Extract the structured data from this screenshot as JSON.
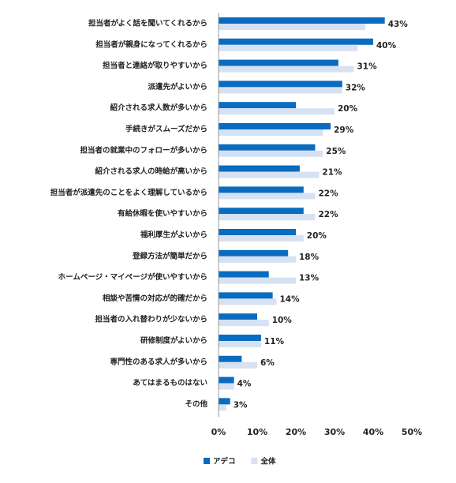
{
  "chart_data": {
    "type": "bar",
    "orientation": "horizontal",
    "categories": [
      "担当者がよく話を聞いてくれるから",
      "担当者が親身になってくれるから",
      "担当者と連絡が取りやすいから",
      "派遣先がよいから",
      "紹介される求人数が多いから",
      "手続きがスムーズだから",
      "担当者の就業中のフォローが多いから",
      "紹介される求人の時給が高いから",
      "担当者が派遣先のことをよく理解しているから",
      "有給休暇を使いやすいから",
      "福利厚生がよいから",
      "登録方法が簡単だから",
      "ホームページ・マイページが使いやすいから",
      "相談や苦情の対応が的確だから",
      "担当者の入れ替わりが少ないから",
      "研修制度がよいから",
      "専門性のある求人が多いから",
      "あてはまるものはない",
      "その他"
    ],
    "series": [
      {
        "name": "アデコ",
        "color": "#0a6cc0",
        "values": [
          43,
          40,
          31,
          32,
          20,
          29,
          25,
          21,
          22,
          22,
          20,
          18,
          13,
          14,
          10,
          11,
          6,
          4,
          3
        ],
        "value_labels": [
          "43%",
          "40%",
          "31%",
          "32%",
          "20%",
          "29%",
          "25%",
          "21%",
          "22%",
          "22%",
          "20%",
          "18%",
          "13%",
          "14%",
          "10%",
          "11%",
          "6%",
          "4%",
          "3%"
        ]
      },
      {
        "name": "全体",
        "color": "#d6e1f3",
        "values": [
          38,
          36,
          35,
          32,
          30,
          27,
          27,
          26,
          25,
          25,
          22,
          20,
          20,
          15,
          13,
          11,
          10,
          4,
          2
        ]
      }
    ],
    "xlim": [
      0,
      50
    ],
    "xticks": [
      {
        "value": 0,
        "label": "0%"
      },
      {
        "value": 10,
        "label": "10%"
      },
      {
        "value": 20,
        "label": "20%"
      },
      {
        "value": 30,
        "label": "30%"
      },
      {
        "value": 40,
        "label": "40%"
      },
      {
        "value": 50,
        "label": "50%"
      }
    ],
    "grid": false,
    "legend": "bottom"
  }
}
